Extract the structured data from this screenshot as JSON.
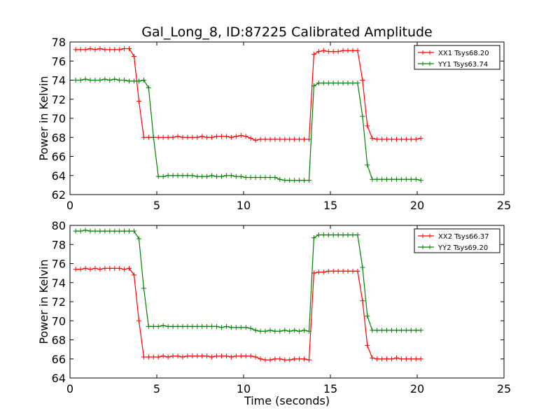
{
  "chart_data": [
    {
      "type": "line",
      "title": "Gal_Long_8, ID:87225 Calibrated Amplitude",
      "xlabel": "",
      "ylabel": "Power in Kelvin",
      "xlim": [
        0,
        25
      ],
      "ylim": [
        62,
        78
      ],
      "xticks": [
        0,
        5,
        10,
        15,
        20,
        25
      ],
      "yticks": [
        62,
        64,
        66,
        68,
        70,
        72,
        74,
        76,
        78
      ],
      "grid": false,
      "legend_position": "top-right",
      "x": [
        0.33,
        0.61,
        0.89,
        1.17,
        1.45,
        1.73,
        2.01,
        2.29,
        2.57,
        2.85,
        3.13,
        3.41,
        3.69,
        3.97,
        4.25,
        4.53,
        4.81,
        5.09,
        5.37,
        5.65,
        5.93,
        6.21,
        6.49,
        6.77,
        7.05,
        7.33,
        7.61,
        7.89,
        8.17,
        8.45,
        8.73,
        9.01,
        9.29,
        9.57,
        9.85,
        10.13,
        10.41,
        10.69,
        10.97,
        11.25,
        11.53,
        11.81,
        12.09,
        12.37,
        12.65,
        12.93,
        13.21,
        13.49,
        13.77,
        14.05,
        14.33,
        14.61,
        14.89,
        15.17,
        15.45,
        15.73,
        16.01,
        16.29,
        16.57,
        16.85,
        17.13,
        17.41,
        17.69,
        17.97,
        18.25,
        18.53,
        18.81,
        19.09,
        19.37,
        19.65,
        19.93,
        20.21
      ],
      "series": [
        {
          "name": "XX1 Tsys68.20",
          "color": "#ff0000",
          "values": [
            77.2,
            77.2,
            77.2,
            77.3,
            77.2,
            77.3,
            77.2,
            77.2,
            77.2,
            77.2,
            77.3,
            77.3,
            76.5,
            71.8,
            68.0,
            68.0,
            68.0,
            68.0,
            68.0,
            68.0,
            68.0,
            68.1,
            68.0,
            68.0,
            68.0,
            68.0,
            68.1,
            68.0,
            68.0,
            68.1,
            68.1,
            68.1,
            68.0,
            68.1,
            68.2,
            68.1,
            67.9,
            67.7,
            67.8,
            67.8,
            67.8,
            67.8,
            67.8,
            67.8,
            67.8,
            67.8,
            67.8,
            67.8,
            67.8,
            76.7,
            77.0,
            77.1,
            77.0,
            77.0,
            77.0,
            77.1,
            77.1,
            77.1,
            77.1,
            74.0,
            69.2,
            67.9,
            67.8,
            67.8,
            67.8,
            67.8,
            67.8,
            67.8,
            67.8,
            67.8,
            67.8,
            67.9
          ]
        },
        {
          "name": "YY1 Tsys63.74",
          "color": "#008000",
          "values": [
            74.0,
            74.0,
            74.1,
            74.0,
            74.0,
            74.0,
            74.1,
            74.0,
            74.1,
            74.0,
            74.0,
            73.9,
            73.9,
            73.9,
            74.0,
            73.2,
            68.0,
            63.9,
            63.9,
            64.0,
            64.0,
            64.0,
            64.0,
            64.0,
            64.0,
            63.9,
            63.9,
            63.9,
            64.0,
            63.9,
            63.9,
            64.0,
            64.0,
            63.9,
            63.9,
            63.8,
            63.8,
            63.8,
            63.8,
            63.8,
            63.8,
            63.8,
            63.6,
            63.5,
            63.5,
            63.5,
            63.5,
            63.5,
            63.5,
            73.4,
            73.7,
            73.7,
            73.7,
            73.7,
            73.7,
            73.7,
            73.7,
            73.7,
            73.7,
            70.2,
            65.1,
            63.6,
            63.6,
            63.6,
            63.6,
            63.6,
            63.6,
            63.6,
            63.6,
            63.6,
            63.6,
            63.5
          ]
        }
      ]
    },
    {
      "type": "line",
      "title": "",
      "xlabel": "Time (seconds)",
      "ylabel": "Power in Kelvin",
      "xlim": [
        0,
        25
      ],
      "ylim": [
        64,
        80
      ],
      "xticks": [
        0,
        5,
        10,
        15,
        20,
        25
      ],
      "yticks": [
        64,
        66,
        68,
        70,
        72,
        74,
        76,
        78,
        80
      ],
      "grid": false,
      "legend_position": "top-right",
      "x": [
        0.33,
        0.61,
        0.89,
        1.17,
        1.45,
        1.73,
        2.01,
        2.29,
        2.57,
        2.85,
        3.13,
        3.41,
        3.69,
        3.97,
        4.25,
        4.53,
        4.81,
        5.09,
        5.37,
        5.65,
        5.93,
        6.21,
        6.49,
        6.77,
        7.05,
        7.33,
        7.61,
        7.89,
        8.17,
        8.45,
        8.73,
        9.01,
        9.29,
        9.57,
        9.85,
        10.13,
        10.41,
        10.69,
        10.97,
        11.25,
        11.53,
        11.81,
        12.09,
        12.37,
        12.65,
        12.93,
        13.21,
        13.49,
        13.77,
        14.05,
        14.33,
        14.61,
        14.89,
        15.17,
        15.45,
        15.73,
        16.01,
        16.29,
        16.57,
        16.85,
        17.13,
        17.41,
        17.69,
        17.97,
        18.25,
        18.53,
        18.81,
        19.09,
        19.37,
        19.65,
        19.93,
        20.21
      ],
      "series": [
        {
          "name": "XX2 Tsys66.37",
          "color": "#ff0000",
          "values": [
            75.4,
            75.4,
            75.5,
            75.4,
            75.5,
            75.4,
            75.5,
            75.5,
            75.5,
            75.5,
            75.4,
            75.5,
            74.8,
            70.0,
            66.2,
            66.2,
            66.2,
            66.2,
            66.3,
            66.2,
            66.3,
            66.3,
            66.2,
            66.3,
            66.3,
            66.3,
            66.3,
            66.3,
            66.2,
            66.3,
            66.3,
            66.3,
            66.2,
            66.3,
            66.3,
            66.3,
            66.3,
            66.2,
            66.0,
            65.9,
            65.9,
            66.0,
            66.0,
            65.9,
            65.9,
            66.0,
            66.0,
            66.0,
            65.9,
            75.0,
            75.1,
            75.1,
            75.2,
            75.2,
            75.2,
            75.2,
            75.2,
            75.2,
            75.2,
            72.1,
            67.4,
            66.1,
            66.0,
            66.0,
            66.0,
            66.0,
            66.1,
            66.0,
            66.0,
            66.0,
            66.0,
            66.0
          ]
        },
        {
          "name": "YY2 Tsys69.20",
          "color": "#008000",
          "values": [
            79.4,
            79.4,
            79.5,
            79.4,
            79.4,
            79.4,
            79.4,
            79.4,
            79.4,
            79.4,
            79.4,
            79.4,
            79.4,
            78.6,
            73.4,
            69.4,
            69.4,
            69.4,
            69.5,
            69.4,
            69.4,
            69.4,
            69.4,
            69.4,
            69.4,
            69.4,
            69.4,
            69.4,
            69.4,
            69.4,
            69.3,
            69.4,
            69.3,
            69.3,
            69.3,
            69.3,
            69.2,
            69.0,
            68.9,
            68.9,
            69.0,
            68.9,
            68.9,
            69.0,
            68.9,
            69.0,
            68.9,
            69.0,
            68.9,
            78.7,
            79.0,
            79.0,
            79.0,
            79.0,
            79.0,
            79.0,
            79.0,
            79.0,
            79.0,
            75.6,
            70.5,
            69.0,
            69.0,
            69.0,
            69.0,
            69.0,
            69.0,
            69.0,
            69.0,
            69.0,
            69.0,
            69.0
          ]
        }
      ]
    }
  ]
}
